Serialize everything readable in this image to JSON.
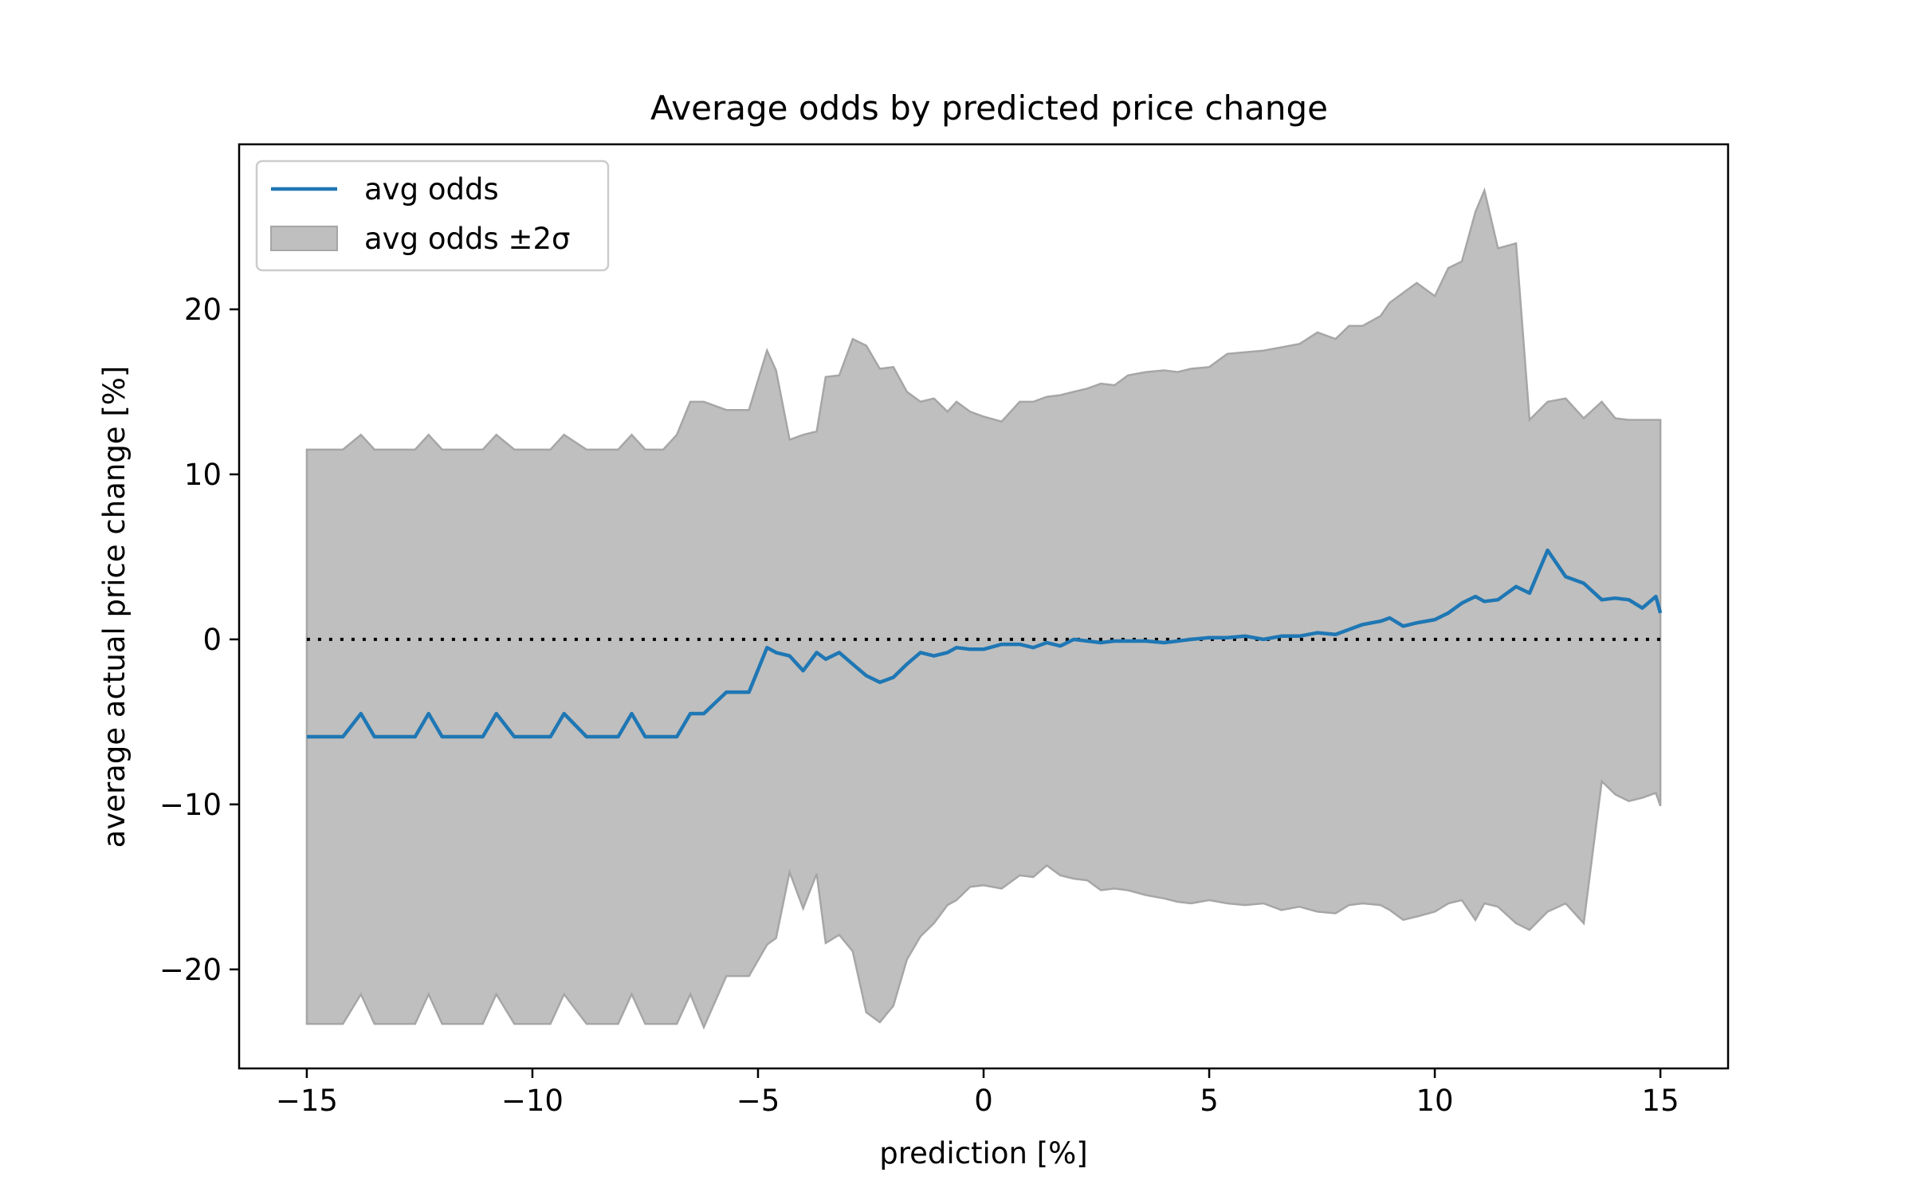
{
  "chart_data": {
    "type": "line",
    "title": "Average odds by predicted price change",
    "xlabel": "prediction [%]",
    "ylabel": "average actual price change [%]",
    "xlim": [
      -16.5,
      16.5
    ],
    "ylim": [
      -26,
      30
    ],
    "xticks": [
      -15,
      -10,
      -5,
      0,
      5,
      10,
      15
    ],
    "xtick_labels": [
      "−15",
      "−10",
      "−5",
      "0",
      "5",
      "10",
      "15"
    ],
    "yticks": [
      -20,
      -10,
      0,
      10,
      20
    ],
    "ytick_labels": [
      "−20",
      "−10",
      "0",
      "10",
      "20"
    ],
    "grid": false,
    "legend_position": "upper-left",
    "colors": {
      "line": "#1f77b4",
      "band_fill": "#bfbfbf",
      "band_edge": "#a6a6a6",
      "zero_line": "#000000"
    },
    "series": [
      {
        "name": "avg odds",
        "kind": "line",
        "x": [
          -15.0,
          -14.5,
          -14.2,
          -13.8,
          -13.5,
          -13.0,
          -12.6,
          -12.3,
          -12.0,
          -11.5,
          -11.1,
          -10.8,
          -10.4,
          -10.0,
          -9.6,
          -9.3,
          -8.8,
          -8.5,
          -8.1,
          -7.8,
          -7.5,
          -7.1,
          -6.8,
          -6.5,
          -6.2,
          -5.7,
          -5.2,
          -4.8,
          -4.6,
          -4.3,
          -4.0,
          -3.7,
          -3.5,
          -3.2,
          -2.9,
          -2.6,
          -2.3,
          -2.0,
          -1.7,
          -1.4,
          -1.1,
          -0.8,
          -0.6,
          -0.3,
          0.0,
          0.4,
          0.8,
          1.1,
          1.4,
          1.7,
          2.0,
          2.3,
          2.6,
          2.9,
          3.2,
          3.6,
          4.0,
          4.3,
          4.6,
          5.0,
          5.4,
          5.8,
          6.2,
          6.6,
          7.0,
          7.4,
          7.8,
          8.1,
          8.4,
          8.8,
          9.0,
          9.3,
          9.6,
          10.0,
          10.3,
          10.6,
          10.9,
          11.1,
          11.4,
          11.8,
          12.1,
          12.5,
          12.9,
          13.3,
          13.7,
          14.0,
          14.3,
          14.6,
          14.9,
          15.0
        ],
        "y": [
          -5.9,
          -5.9,
          -5.9,
          -4.5,
          -5.9,
          -5.9,
          -5.9,
          -4.5,
          -5.9,
          -5.9,
          -5.9,
          -4.5,
          -5.9,
          -5.9,
          -5.9,
          -4.5,
          -5.9,
          -5.9,
          -5.9,
          -4.5,
          -5.9,
          -5.9,
          -5.9,
          -4.5,
          -4.5,
          -3.2,
          -3.2,
          -0.5,
          -0.8,
          -1.0,
          -1.9,
          -0.8,
          -1.2,
          -0.8,
          -1.5,
          -2.2,
          -2.6,
          -2.3,
          -1.5,
          -0.8,
          -1.0,
          -0.8,
          -0.5,
          -0.6,
          -0.6,
          -0.3,
          -0.3,
          -0.5,
          -0.2,
          -0.4,
          0.0,
          -0.1,
          -0.2,
          -0.1,
          -0.1,
          -0.1,
          -0.2,
          -0.1,
          0.0,
          0.1,
          0.1,
          0.2,
          0.0,
          0.2,
          0.2,
          0.4,
          0.3,
          0.6,
          0.9,
          1.1,
          1.3,
          0.8,
          1.0,
          1.2,
          1.6,
          2.2,
          2.6,
          2.3,
          2.4,
          3.2,
          2.8,
          5.4,
          3.8,
          3.4,
          2.4,
          2.5,
          2.4,
          1.9,
          2.6,
          1.6
        ]
      },
      {
        "name": "avg odds ±2σ",
        "kind": "band",
        "x": [
          -15.0,
          -14.5,
          -14.2,
          -13.8,
          -13.5,
          -13.0,
          -12.6,
          -12.3,
          -12.0,
          -11.5,
          -11.1,
          -10.8,
          -10.4,
          -10.0,
          -9.6,
          -9.3,
          -8.8,
          -8.5,
          -8.1,
          -7.8,
          -7.5,
          -7.1,
          -6.8,
          -6.5,
          -6.2,
          -5.7,
          -5.2,
          -4.8,
          -4.6,
          -4.3,
          -4.0,
          -3.7,
          -3.5,
          -3.2,
          -2.9,
          -2.6,
          -2.3,
          -2.0,
          -1.7,
          -1.4,
          -1.1,
          -0.8,
          -0.6,
          -0.3,
          0.0,
          0.4,
          0.8,
          1.1,
          1.4,
          1.7,
          2.0,
          2.3,
          2.6,
          2.9,
          3.2,
          3.6,
          4.0,
          4.3,
          4.6,
          5.0,
          5.4,
          5.8,
          6.2,
          6.6,
          7.0,
          7.4,
          7.8,
          8.1,
          8.4,
          8.8,
          9.0,
          9.3,
          9.6,
          10.0,
          10.3,
          10.6,
          10.9,
          11.1,
          11.4,
          11.8,
          12.1,
          12.5,
          12.9,
          13.3,
          13.7,
          14.0,
          14.3,
          14.6,
          14.9,
          15.0
        ],
        "upper": [
          11.5,
          11.5,
          11.5,
          12.4,
          11.5,
          11.5,
          11.5,
          12.4,
          11.5,
          11.5,
          11.5,
          12.4,
          11.5,
          11.5,
          11.5,
          12.4,
          11.5,
          11.5,
          11.5,
          12.4,
          11.5,
          11.5,
          12.4,
          14.4,
          14.4,
          13.9,
          13.9,
          17.5,
          16.3,
          12.1,
          12.4,
          12.6,
          15.9,
          16.0,
          18.2,
          17.8,
          16.4,
          16.5,
          15.0,
          14.4,
          14.6,
          13.8,
          14.4,
          13.8,
          13.5,
          13.2,
          14.4,
          14.4,
          14.7,
          14.8,
          15.0,
          15.2,
          15.5,
          15.4,
          16.0,
          16.2,
          16.3,
          16.2,
          16.4,
          16.5,
          17.3,
          17.4,
          17.5,
          17.7,
          17.9,
          18.6,
          18.2,
          19.0,
          19.0,
          19.6,
          20.4,
          21.0,
          21.6,
          20.8,
          22.5,
          22.9,
          25.9,
          27.2,
          23.7,
          24.0,
          13.3,
          14.4,
          14.6,
          13.4,
          14.4,
          13.4,
          13.3,
          13.3,
          13.3,
          13.3
        ],
        "lower": [
          -23.3,
          -23.3,
          -23.3,
          -21.5,
          -23.3,
          -23.3,
          -23.3,
          -21.5,
          -23.3,
          -23.3,
          -23.3,
          -21.5,
          -23.3,
          -23.3,
          -23.3,
          -21.5,
          -23.3,
          -23.3,
          -23.3,
          -21.5,
          -23.3,
          -23.3,
          -23.3,
          -21.5,
          -23.5,
          -20.4,
          -20.4,
          -18.5,
          -18.1,
          -14.1,
          -16.3,
          -14.2,
          -18.4,
          -17.9,
          -18.9,
          -22.6,
          -23.2,
          -22.2,
          -19.4,
          -18.0,
          -17.2,
          -16.1,
          -15.8,
          -15.0,
          -14.9,
          -15.1,
          -14.3,
          -14.4,
          -13.7,
          -14.3,
          -14.5,
          -14.6,
          -15.2,
          -15.1,
          -15.2,
          -15.5,
          -15.7,
          -15.9,
          -16.0,
          -15.8,
          -16.0,
          -16.1,
          -16.0,
          -16.4,
          -16.2,
          -16.5,
          -16.6,
          -16.1,
          -16.0,
          -16.1,
          -16.4,
          -17.0,
          -16.8,
          -16.5,
          -16.0,
          -15.8,
          -17.0,
          -16.0,
          -16.2,
          -17.2,
          -17.6,
          -16.5,
          -16.0,
          -17.2,
          -8.6,
          -9.4,
          -9.8,
          -9.6,
          -9.3,
          -10.1
        ]
      },
      {
        "name": "",
        "kind": "reference",
        "x": [
          -15,
          15
        ],
        "y": [
          0,
          0
        ]
      }
    ]
  }
}
